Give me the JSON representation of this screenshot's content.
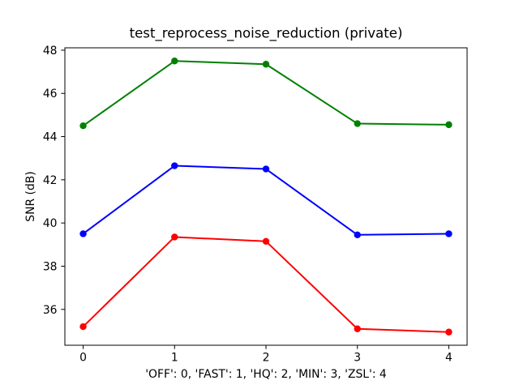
{
  "chart_data": {
    "type": "line",
    "title": "test_reprocess_noise_reduction (private)",
    "xlabel": "'OFF': 0, 'FAST': 1, 'HQ': 2, 'MIN': 3, 'ZSL': 4",
    "ylabel": "SNR (dB)",
    "x": [
      0,
      1,
      2,
      3,
      4
    ],
    "series": [
      {
        "name": "green",
        "color": "#008000",
        "values": [
          44.5,
          47.5,
          47.35,
          44.6,
          44.55
        ]
      },
      {
        "name": "blue",
        "color": "#0000ff",
        "values": [
          39.5,
          42.65,
          42.5,
          39.45,
          39.5
        ]
      },
      {
        "name": "red",
        "color": "#ff0000",
        "values": [
          35.2,
          39.35,
          39.15,
          35.1,
          34.95
        ]
      }
    ],
    "xticks": [
      0,
      1,
      2,
      3,
      4
    ],
    "yticks": [
      36,
      38,
      40,
      42,
      44,
      46,
      48
    ],
    "xlim": [
      -0.2,
      4.2
    ],
    "ylim": [
      34.34,
      48.11
    ],
    "grid": false,
    "legend": null,
    "marker": "circle",
    "background_color": "#ffffff",
    "spine_color": "#000000"
  }
}
